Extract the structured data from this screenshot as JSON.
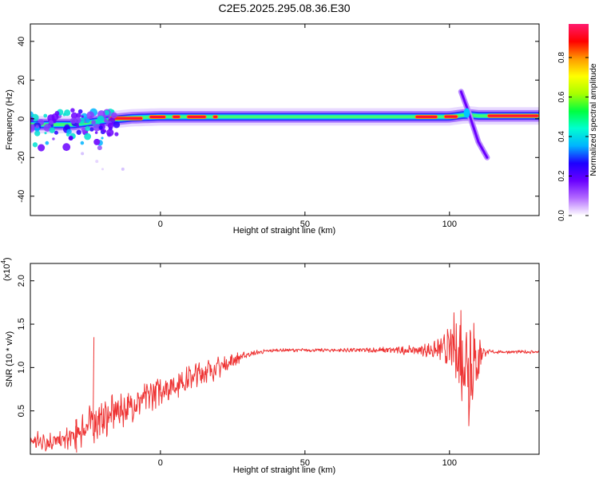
{
  "figure_title": "C2E5.2025.295.08.36.E30",
  "chart_data": [
    {
      "type": "heatmap",
      "xlabel": "Height of straight line (km)",
      "ylabel": "Frequency (Hz)",
      "xlim": [
        -45,
        131
      ],
      "ylim": [
        -50,
        49
      ],
      "xticks": [
        0,
        50,
        100
      ],
      "yticks": [
        -40,
        -20,
        0,
        20,
        40
      ],
      "colorbar": {
        "label": "Normalized spectral amplitude",
        "range": [
          0,
          0.97
        ],
        "ticks": [
          "0.0",
          "0.2",
          "0.4",
          "0.6",
          "0.8"
        ],
        "tick_values": [
          0,
          0.2,
          0.4,
          0.6,
          0.8
        ],
        "colors": [
          "#ffffff",
          "#b36bff",
          "#6a00ff",
          "#1e00ff",
          "#00b4ff",
          "#00ffd0",
          "#00ff40",
          "#a8ff00",
          "#ffff00",
          "#ff9a00",
          "#ff0000",
          "#ff1a6e"
        ]
      },
      "ridge": {
        "description": "dominant frequency band",
        "x": [
          -45,
          -30,
          -20,
          -10,
          0,
          20,
          50,
          80,
          100,
          105,
          107,
          110,
          131
        ],
        "y": [
          -3,
          -3,
          -1,
          0.5,
          1,
          1,
          1,
          1,
          1,
          2,
          2,
          1.5,
          1.5
        ]
      },
      "branches": [
        {
          "x": [
            104,
            106,
            108,
            110,
            113
          ],
          "y": [
            14,
            6,
            -3,
            -12,
            -20
          ]
        }
      ],
      "grid": false
    },
    {
      "type": "line",
      "xlabel": "Height of straight line (km)",
      "ylabel": "SNR (10 * v/v)",
      "yscale_label": "(x10",
      "yscale_exp": "4",
      "xlim": [
        -45,
        131
      ],
      "ylim": [
        0,
        2.2
      ],
      "xticks": [
        0,
        50,
        100
      ],
      "yticks": [
        "0.5",
        "1.0",
        "1.5",
        "2.0"
      ],
      "ytick_values": [
        0.5,
        1.0,
        1.5,
        2.0
      ],
      "series": [
        {
          "color": "#ee3333",
          "envelope_x": [
            -45,
            -40,
            -35,
            -30,
            -25,
            -20,
            -15,
            -10,
            -5,
            0,
            5,
            10,
            15,
            20,
            25,
            30,
            35,
            40,
            50,
            60,
            70,
            80,
            90,
            95,
            100,
            103,
            105,
            107,
            109,
            111,
            113,
            120,
            131
          ],
          "envelope_y": [
            0.15,
            0.15,
            0.15,
            0.2,
            0.35,
            0.4,
            0.5,
            0.55,
            0.65,
            0.75,
            0.8,
            0.88,
            0.95,
            1.0,
            1.08,
            1.15,
            1.18,
            1.2,
            1.2,
            1.2,
            1.2,
            1.2,
            1.2,
            1.2,
            1.22,
            1.2,
            1.15,
            1.1,
            1.05,
            1.18,
            1.18,
            1.18,
            1.18
          ],
          "noise_amplitude": [
            0.08,
            0.1,
            0.08,
            0.12,
            0.18,
            0.18,
            0.16,
            0.14,
            0.14,
            0.14,
            0.13,
            0.12,
            0.12,
            0.1,
            0.07,
            0.03,
            0.02,
            0.015,
            0.015,
            0.015,
            0.02,
            0.03,
            0.05,
            0.08,
            0.18,
            0.45,
            0.65,
            0.65,
            0.5,
            0.12,
            0.02,
            0.015,
            0.015
          ]
        }
      ],
      "spikes": [
        {
          "x": -23,
          "y": 1.35
        },
        {
          "x": -29,
          "y": 0.02
        }
      ],
      "grid": false
    }
  ]
}
